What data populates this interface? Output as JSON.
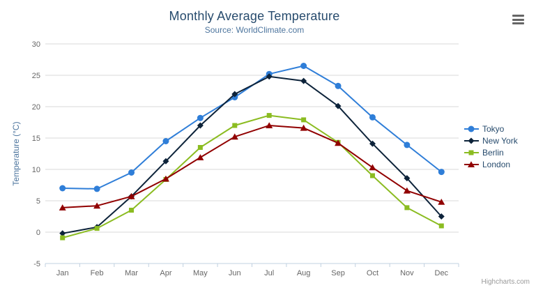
{
  "chart_data": {
    "type": "line",
    "title": "Monthly Average Temperature",
    "subtitle": "Source: WorldClimate.com",
    "xlabel": "",
    "ylabel": "Temperature (°C)",
    "ylim": [
      -5,
      30
    ],
    "ytick_step": 5,
    "grid": true,
    "legend_position": "right",
    "categories": [
      "Jan",
      "Feb",
      "Mar",
      "Apr",
      "May",
      "Jun",
      "Jul",
      "Aug",
      "Sep",
      "Oct",
      "Nov",
      "Dec"
    ],
    "series": [
      {
        "name": "Tokyo",
        "color": "#2f7ed8",
        "symbol": "circle",
        "values": [
          7.0,
          6.9,
          9.5,
          14.5,
          18.2,
          21.5,
          25.2,
          26.5,
          23.3,
          18.3,
          13.9,
          9.6
        ]
      },
      {
        "name": "New York",
        "color": "#0d233a",
        "symbol": "diamond",
        "values": [
          -0.2,
          0.8,
          5.7,
          11.3,
          17.0,
          22.0,
          24.8,
          24.1,
          20.1,
          14.1,
          8.6,
          2.5
        ]
      },
      {
        "name": "Berlin",
        "color": "#8bbc21",
        "symbol": "square",
        "values": [
          -0.9,
          0.6,
          3.5,
          8.4,
          13.5,
          17.0,
          18.6,
          17.9,
          14.3,
          9.0,
          3.9,
          1.0
        ]
      },
      {
        "name": "London",
        "color": "#910000",
        "symbol": "triangle",
        "values": [
          3.9,
          4.2,
          5.7,
          8.5,
          11.9,
          15.2,
          17.0,
          16.6,
          14.2,
          10.3,
          6.6,
          4.8
        ]
      }
    ]
  },
  "theme": {
    "title_color": "#274b6d",
    "subtitle_color": "#4d759e",
    "axis_label_color": "#666666",
    "axis_title_color": "#4d759e",
    "grid_color": "#d8d8d8",
    "axis_line_color": "#c0d0e0",
    "legend_text_color": "#274b6d",
    "credit_color": "#999999",
    "export_icon_color": "#666666",
    "background": "#ffffff"
  },
  "export_menu": {
    "icon": "hamburger-menu-icon"
  },
  "credit": "Highcharts.com"
}
